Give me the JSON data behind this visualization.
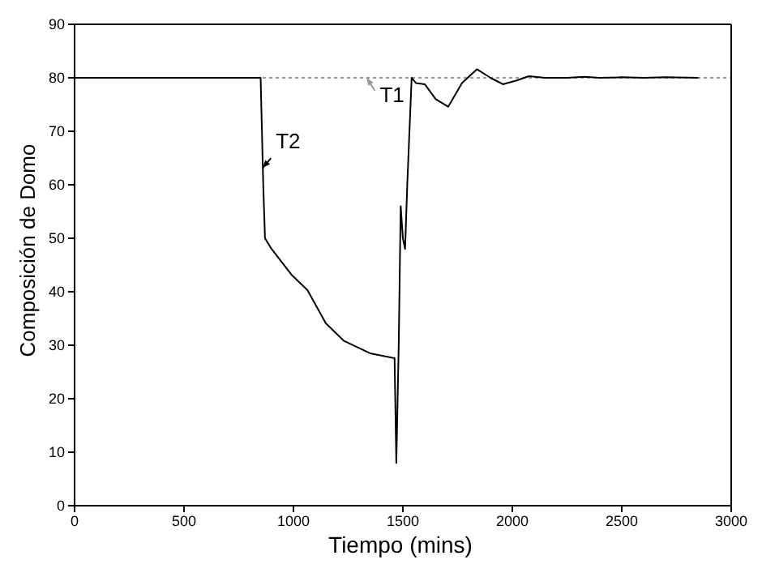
{
  "chart_data": {
    "type": "line",
    "xlabel": "Tiempo (mins)",
    "ylabel": "Composición de Domo",
    "xlim": [
      0,
      3000
    ],
    "ylim": [
      0,
      90
    ],
    "xticks": [
      0,
      500,
      1000,
      1500,
      2000,
      2500,
      3000
    ],
    "yticks": [
      0,
      10,
      20,
      30,
      40,
      50,
      60,
      70,
      80,
      90
    ],
    "marker": "none",
    "series": [
      {
        "name": "T1",
        "color": "#999999",
        "line_style": "dotted",
        "x": [
          0,
          3000
        ],
        "values": [
          80,
          80
        ]
      },
      {
        "name": "T2",
        "color": "#000000",
        "line_style": "solid",
        "x": [
          0,
          850,
          862,
          870,
          900,
          993,
          1064,
          1148,
          1231,
          1350,
          1457,
          1462,
          1470,
          1481,
          1490,
          1500,
          1510,
          1520,
          1540,
          1560,
          1600,
          1650,
          1707,
          1770,
          1838,
          1900,
          1957,
          2020,
          2076,
          2150,
          2250,
          2329,
          2400,
          2500,
          2600,
          2700,
          2850
        ],
        "values": [
          80,
          80,
          60,
          50,
          48,
          43.1,
          40.3,
          34.1,
          30.8,
          28.5,
          27.6,
          27.6,
          8,
          30,
          56,
          50,
          48,
          60,
          80,
          79,
          78.8,
          76,
          74.6,
          79,
          81.6,
          80,
          78.8,
          79.5,
          80.3,
          80,
          80,
          80.2,
          80,
          80.1,
          80,
          80.1,
          80
        ]
      }
    ]
  }
}
